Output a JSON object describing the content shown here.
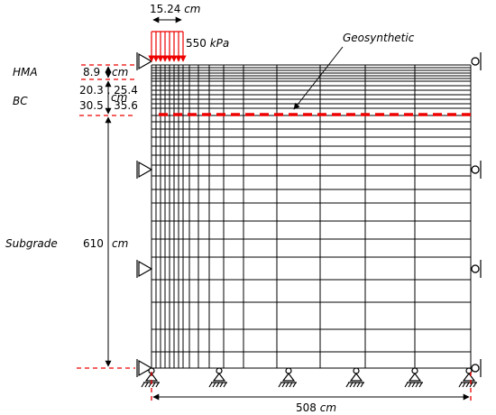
{
  "load": {
    "width": "15.24",
    "width_unit": "cm",
    "pressure": "550",
    "pressure_unit": "kPa"
  },
  "geosynthetic": "Geosynthetic",
  "layers": {
    "hma": {
      "name": "HMA",
      "thickness": "8.9",
      "unit": "cm"
    },
    "bc": {
      "name": "BC",
      "thickness_a": "20.3 , 25.4",
      "thickness_b": "30.5 , 35.6",
      "unit": "cm"
    },
    "subgrade": {
      "name": "Subgrade",
      "thickness": "610",
      "unit": "cm"
    }
  },
  "width": {
    "value": "508",
    "unit": "cm"
  }
}
